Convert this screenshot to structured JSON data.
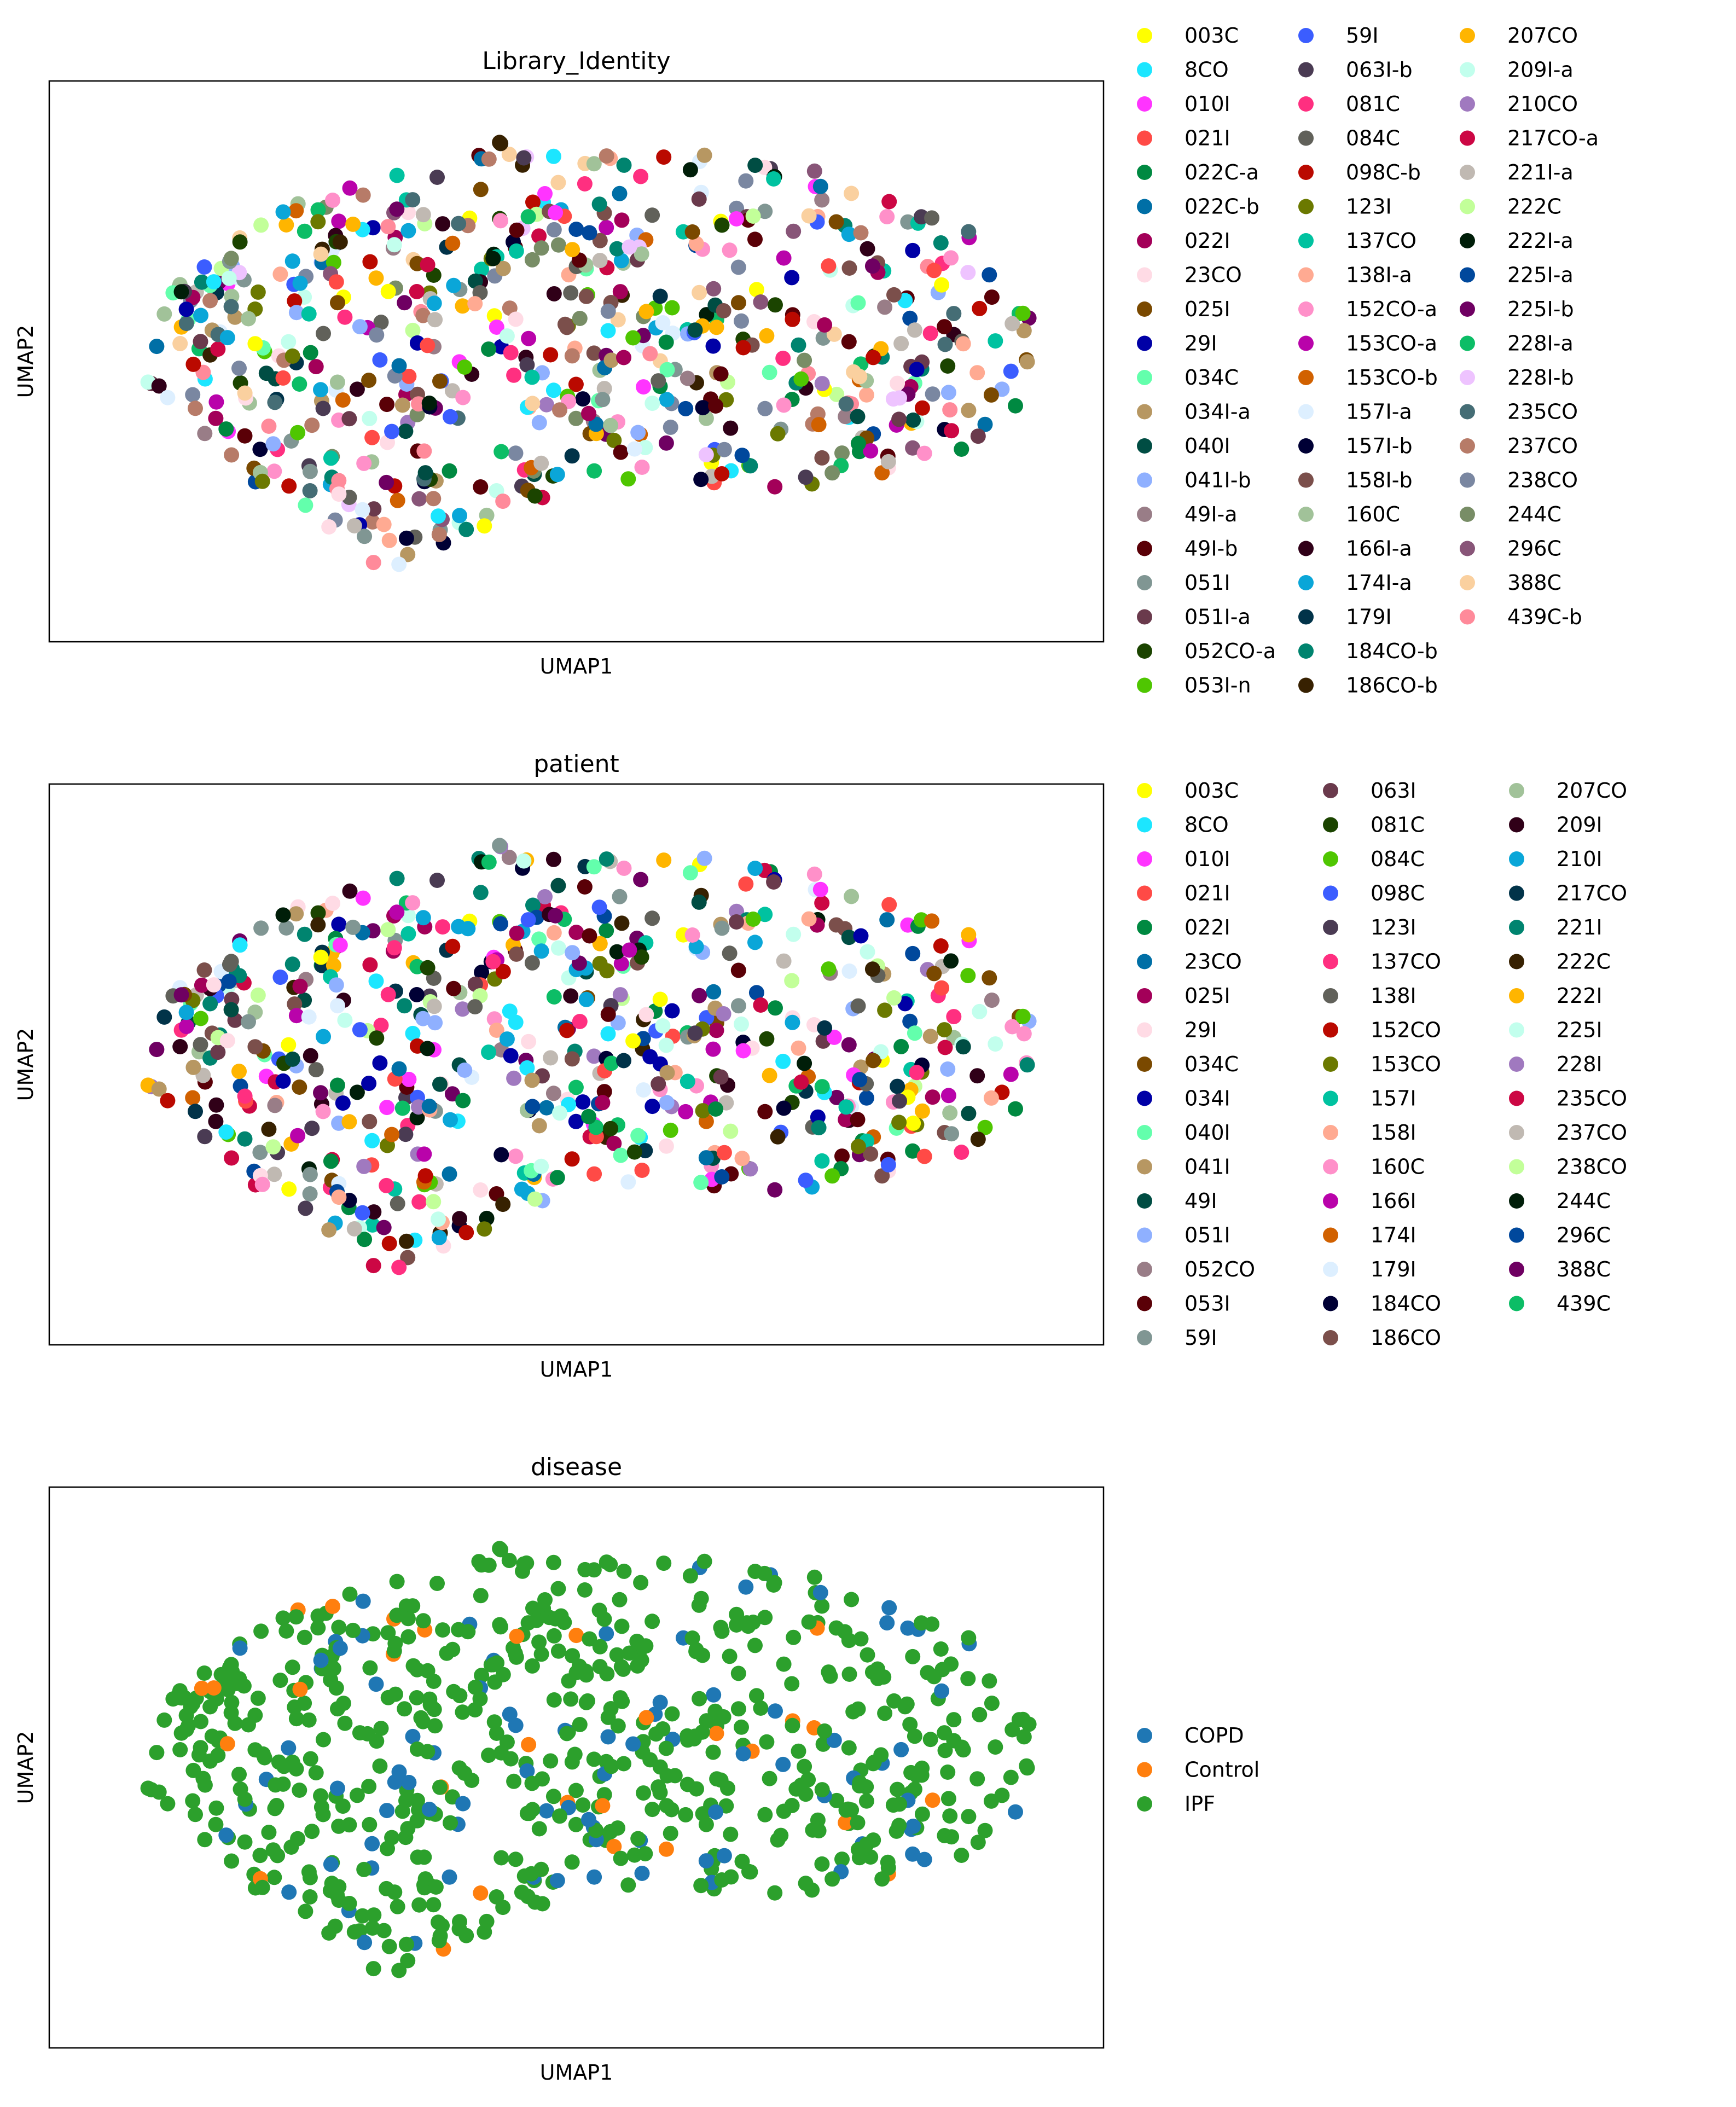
{
  "chart_data": [
    {
      "type": "scatter",
      "title": "Library_Identity",
      "xlabel": "UMAP1",
      "ylabel": "UMAP2",
      "xlim": [
        0,
        100
      ],
      "ylim": [
        0,
        100
      ],
      "ticks": "none",
      "legend_position": "right",
      "legend_columns": 3,
      "legend": [
        {
          "label": "003C",
          "color": "#ffff00"
        },
        {
          "label": "8CO",
          "color": "#1ce6ff"
        },
        {
          "label": "010I",
          "color": "#ff34ff"
        },
        {
          "label": "021I",
          "color": "#ff4a46"
        },
        {
          "label": "022C-a",
          "color": "#008941"
        },
        {
          "label": "022C-b",
          "color": "#006fa6"
        },
        {
          "label": "022I",
          "color": "#a30059"
        },
        {
          "label": "23CO",
          "color": "#ffdbe5"
        },
        {
          "label": "025I",
          "color": "#7a4900"
        },
        {
          "label": "29I",
          "color": "#0000a6"
        },
        {
          "label": "034C",
          "color": "#63ffac"
        },
        {
          "label": "034I-a",
          "color": "#b79762"
        },
        {
          "label": "040I",
          "color": "#004d43"
        },
        {
          "label": "041I-b",
          "color": "#8fb0ff"
        },
        {
          "label": "49I-a",
          "color": "#997d87"
        },
        {
          "label": "49I-b",
          "color": "#5a0007"
        },
        {
          "label": "051I",
          "color": "#809693"
        },
        {
          "label": "051I-a",
          "color": "#6a3a4c"
        },
        {
          "label": "052CO-a",
          "color": "#1b4400"
        },
        {
          "label": "053I-n",
          "color": "#4fc601"
        },
        {
          "label": "59I",
          "color": "#3b5dff"
        },
        {
          "label": "063I-b",
          "color": "#4a3b53"
        },
        {
          "label": "081C",
          "color": "#ff2f80"
        },
        {
          "label": "084C",
          "color": "#61615a"
        },
        {
          "label": "098C-b",
          "color": "#ba0900"
        },
        {
          "label": "123I",
          "color": "#6b7900"
        },
        {
          "label": "137CO",
          "color": "#00c2a0"
        },
        {
          "label": "138I-a",
          "color": "#ffaa92"
        },
        {
          "label": "152CO-a",
          "color": "#ff90c9"
        },
        {
          "label": "153CO-a",
          "color": "#b903aa"
        },
        {
          "label": "153CO-b",
          "color": "#d16100"
        },
        {
          "label": "157I-a",
          "color": "#ddefff"
        },
        {
          "label": "157I-b",
          "color": "#000035"
        },
        {
          "label": "158I-b",
          "color": "#7b4f4b"
        },
        {
          "label": "160C",
          "color": "#a1c299"
        },
        {
          "label": "166I-a",
          "color": "#300018"
        },
        {
          "label": "174I-a",
          "color": "#0aa6d8"
        },
        {
          "label": "179I",
          "color": "#013349"
        },
        {
          "label": "184CO-b",
          "color": "#00846f"
        },
        {
          "label": "186CO-b",
          "color": "#372101"
        },
        {
          "label": "207CO",
          "color": "#ffb500"
        },
        {
          "label": "209I-a",
          "color": "#c2ffed"
        },
        {
          "label": "210CO",
          "color": "#a079bf"
        },
        {
          "label": "217CO-a",
          "color": "#cc0744"
        },
        {
          "label": "221I-a",
          "color": "#c0b9b2"
        },
        {
          "label": "222C",
          "color": "#c2ff99"
        },
        {
          "label": "222I-a",
          "color": "#001e09"
        },
        {
          "label": "225I-a",
          "color": "#00489c"
        },
        {
          "label": "225I-b",
          "color": "#6f0062"
        },
        {
          "label": "228I-a",
          "color": "#0cbd66"
        },
        {
          "label": "228I-b",
          "color": "#eec3ff"
        },
        {
          "label": "235CO",
          "color": "#456d75"
        },
        {
          "label": "237CO",
          "color": "#b77b68"
        },
        {
          "label": "238CO",
          "color": "#7a87a1"
        },
        {
          "label": "244C",
          "color": "#788d66"
        },
        {
          "label": "296C",
          "color": "#885578"
        },
        {
          "label": "388C",
          "color": "#fad09f"
        },
        {
          "label": "439C-b",
          "color": "#ff8a9a"
        }
      ]
    },
    {
      "type": "scatter",
      "title": "patient",
      "xlabel": "UMAP1",
      "ylabel": "UMAP2",
      "xlim": [
        0,
        100
      ],
      "ylim": [
        0,
        100
      ],
      "ticks": "none",
      "legend_position": "right",
      "legend_columns": 3,
      "legend": [
        {
          "label": "003C",
          "color": "#ffff00"
        },
        {
          "label": "8CO",
          "color": "#1ce6ff"
        },
        {
          "label": "010I",
          "color": "#ff34ff"
        },
        {
          "label": "021I",
          "color": "#ff4a46"
        },
        {
          "label": "022I",
          "color": "#008941"
        },
        {
          "label": "23CO",
          "color": "#006fa6"
        },
        {
          "label": "025I",
          "color": "#a30059"
        },
        {
          "label": "29I",
          "color": "#ffdbe5"
        },
        {
          "label": "034C",
          "color": "#7a4900"
        },
        {
          "label": "034I",
          "color": "#0000a6"
        },
        {
          "label": "040I",
          "color": "#63ffac"
        },
        {
          "label": "041I",
          "color": "#b79762"
        },
        {
          "label": "49I",
          "color": "#004d43"
        },
        {
          "label": "051I",
          "color": "#8fb0ff"
        },
        {
          "label": "052CO",
          "color": "#997d87"
        },
        {
          "label": "053I",
          "color": "#5a0007"
        },
        {
          "label": "59I",
          "color": "#809693"
        },
        {
          "label": "063I",
          "color": "#6a3a4c"
        },
        {
          "label": "081C",
          "color": "#1b4400"
        },
        {
          "label": "084C",
          "color": "#4fc601"
        },
        {
          "label": "098C",
          "color": "#3b5dff"
        },
        {
          "label": "123I",
          "color": "#4a3b53"
        },
        {
          "label": "137CO",
          "color": "#ff2f80"
        },
        {
          "label": "138I",
          "color": "#61615a"
        },
        {
          "label": "152CO",
          "color": "#ba0900"
        },
        {
          "label": "153CO",
          "color": "#6b7900"
        },
        {
          "label": "157I",
          "color": "#00c2a0"
        },
        {
          "label": "158I",
          "color": "#ffaa92"
        },
        {
          "label": "160C",
          "color": "#ff90c9"
        },
        {
          "label": "166I",
          "color": "#b903aa"
        },
        {
          "label": "174I",
          "color": "#d16100"
        },
        {
          "label": "179I",
          "color": "#ddefff"
        },
        {
          "label": "184CO",
          "color": "#000035"
        },
        {
          "label": "186CO",
          "color": "#7b4f4b"
        },
        {
          "label": "207CO",
          "color": "#a1c299"
        },
        {
          "label": "209I",
          "color": "#300018"
        },
        {
          "label": "210I",
          "color": "#0aa6d8"
        },
        {
          "label": "217CO",
          "color": "#013349"
        },
        {
          "label": "221I",
          "color": "#00846f"
        },
        {
          "label": "222C",
          "color": "#372101"
        },
        {
          "label": "222I",
          "color": "#ffb500"
        },
        {
          "label": "225I",
          "color": "#c2ffed"
        },
        {
          "label": "228I",
          "color": "#a079bf"
        },
        {
          "label": "235CO",
          "color": "#cc0744"
        },
        {
          "label": "237CO",
          "color": "#c0b9b2"
        },
        {
          "label": "238CO",
          "color": "#c2ff99"
        },
        {
          "label": "244C",
          "color": "#001e09"
        },
        {
          "label": "296C",
          "color": "#00489c"
        },
        {
          "label": "388C",
          "color": "#6f0062"
        },
        {
          "label": "439C",
          "color": "#0cbd66"
        }
      ]
    },
    {
      "type": "scatter",
      "title": "disease",
      "xlabel": "UMAP1",
      "ylabel": "UMAP2",
      "xlim": [
        0,
        100
      ],
      "ylim": [
        0,
        100
      ],
      "ticks": "none",
      "legend_position": "right",
      "legend_columns": 1,
      "legend": [
        {
          "label": "COPD",
          "color": "#1f77b4"
        },
        {
          "label": "Control",
          "color": "#ff7f0e"
        },
        {
          "label": "IPF",
          "color": "#2ca02c"
        }
      ],
      "weights": [
        0.12,
        0.04,
        0.84
      ]
    }
  ],
  "points": {
    "count": 700,
    "seed": 20240517,
    "hull_top": [
      [
        4,
        50
      ],
      [
        8,
        64
      ],
      [
        14,
        74
      ],
      [
        22,
        84
      ],
      [
        32,
        90
      ],
      [
        42,
        95
      ],
      [
        52,
        94
      ],
      [
        62,
        92
      ],
      [
        72,
        90
      ],
      [
        80,
        86
      ],
      [
        90,
        78
      ],
      [
        96,
        60
      ],
      [
        100,
        58
      ]
    ],
    "hull_bottom": [
      [
        4,
        50
      ],
      [
        8,
        40
      ],
      [
        14,
        30
      ],
      [
        20,
        20
      ],
      [
        26,
        10
      ],
      [
        30,
        4
      ],
      [
        34,
        10
      ],
      [
        42,
        18
      ],
      [
        50,
        24
      ],
      [
        60,
        26
      ],
      [
        70,
        24
      ],
      [
        80,
        26
      ],
      [
        90,
        32
      ],
      [
        96,
        40
      ],
      [
        100,
        58
      ]
    ]
  }
}
